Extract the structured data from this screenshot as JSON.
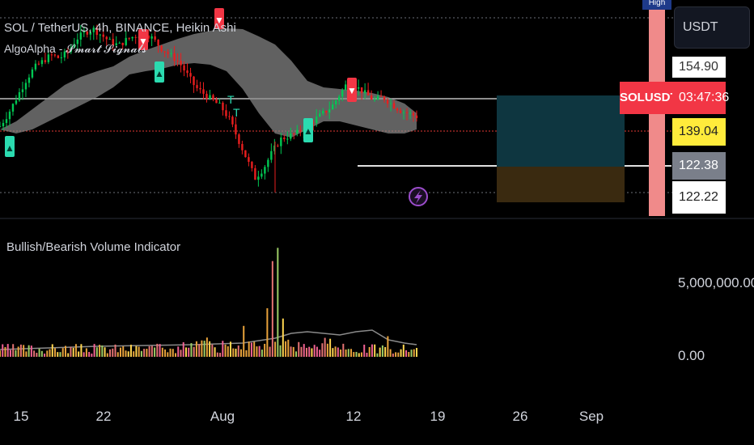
{
  "header": {
    "symbol_line": "SOL / TetherUS, 4h, BINANCE, Heikin Ashi",
    "indicator_line": "AlgoAlpha - 𝓢𝓶𝓪𝓻𝓽 𝓢𝓲𝓰𝓷𝓪𝓵𝓼"
  },
  "toolbar": {
    "currency": "USDT",
    "high_label": "High"
  },
  "price_axis": {
    "high_value": "154.90",
    "countdown_symbol": "SOLUSDT",
    "countdown_time": "03:47:36",
    "last_price": "139.04",
    "level_1": "122.38",
    "level_2": "122.22"
  },
  "lower_pane": {
    "title": "Bullish/Bearish Volume Indicator",
    "axis_top": "5,000,000.00",
    "axis_bottom": "0.00"
  },
  "time_axis": [
    "15",
    "22",
    "Aug",
    "12",
    "19",
    "26",
    "Sep"
  ],
  "signals": {
    "buy_glyph": "▲",
    "sell_glyph": "▼",
    "take_profit_glyph": "T"
  },
  "colors": {
    "bull": "#26a69a",
    "bull_candle": "#00c853",
    "bear": "#e91e1e",
    "last_price_box": "#ffeb3b",
    "countdown_box": "#f23645",
    "buy_marker": "#2bdbb0",
    "sell_marker": "#f23645",
    "cloud": "#8a8a8a",
    "range_upper": "#0e3640",
    "range_lower": "#3a2a10"
  },
  "chart_data": [
    {
      "type": "candlestick",
      "style": "Heikin Ashi",
      "x_ticks": [
        "15",
        "22",
        "Aug",
        "12",
        "19",
        "26",
        "Sep"
      ],
      "y_labels": [
        154.9,
        139.04,
        122.38,
        122.22
      ],
      "path_y": [
        136,
        140,
        145,
        150,
        154,
        156,
        158,
        157,
        159,
        163,
        165,
        166,
        164,
        162,
        161,
        163,
        164,
        165,
        163,
        160,
        158,
        156,
        152,
        148,
        146,
        144,
        142,
        138,
        132,
        126,
        120,
        123,
        128,
        132,
        133,
        134,
        136,
        138,
        140,
        142,
        146,
        150,
        148,
        146,
        144,
        145,
        143,
        141,
        140,
        139
      ],
      "signals": [
        {
          "type": "buy",
          "x": "Jul 11"
        },
        {
          "type": "sell",
          "x": "Jul 24"
        },
        {
          "type": "buy",
          "x": "Jul 25"
        },
        {
          "type": "sell",
          "x": "Jul 30"
        },
        {
          "type": "take_profit",
          "x": "Aug 2"
        },
        {
          "type": "take_profit",
          "x": "Aug 2"
        },
        {
          "type": "buy",
          "x": "Aug 8"
        },
        {
          "type": "sell",
          "x": "Aug 12"
        }
      ]
    },
    {
      "type": "bar",
      "title": "Bullish/Bearish Volume Indicator",
      "y_ticks": [
        0,
        5000000
      ],
      "spike_values": [
        6500000,
        7400000,
        3300000,
        2100000,
        2600000,
        1400000
      ]
    }
  ]
}
